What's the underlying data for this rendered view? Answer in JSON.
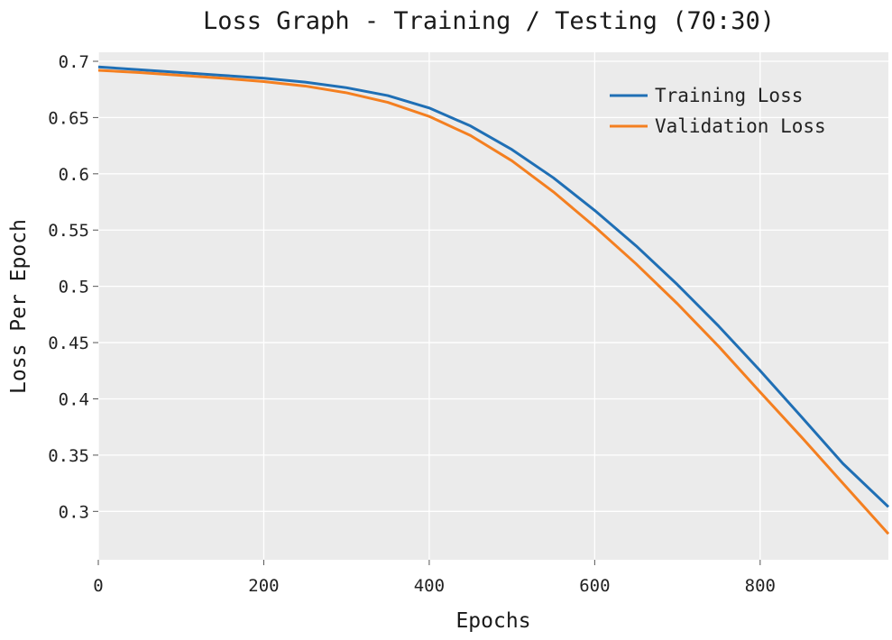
{
  "chart_data": {
    "type": "line",
    "title": "Loss Graph - Training / Testing (70:30)",
    "xlabel": "Epochs",
    "ylabel": "Loss Per Epoch",
    "xlim": [
      0,
      955
    ],
    "ylim": [
      0.257,
      0.708
    ],
    "xticks": [
      0,
      200,
      400,
      600,
      800
    ],
    "yticks": [
      0.3,
      0.35,
      0.4,
      0.45,
      0.5,
      0.55,
      0.6,
      0.65,
      0.7
    ],
    "ytick_labels": [
      "0.3",
      "0.35",
      "0.4",
      "0.45",
      "0.5",
      "0.55",
      "0.6",
      "0.65",
      "0.7"
    ],
    "grid": true,
    "legend_position": "top-right",
    "background_color": "#ebebeb",
    "grid_color": "#ffffff",
    "series": [
      {
        "name": "Training Loss",
        "color": "#1f6fb5",
        "x": [
          0,
          50,
          100,
          150,
          200,
          250,
          300,
          350,
          400,
          450,
          500,
          550,
          600,
          650,
          700,
          750,
          800,
          850,
          900,
          955
        ],
        "y": [
          0.695,
          0.6925,
          0.69,
          0.6875,
          0.685,
          0.6815,
          0.6765,
          0.6695,
          0.6585,
          0.6425,
          0.6215,
          0.5965,
          0.5675,
          0.536,
          0.5015,
          0.4645,
          0.425,
          0.384,
          0.3425,
          0.304
        ]
      },
      {
        "name": "Validation Loss",
        "color": "#f47f20",
        "x": [
          0,
          50,
          100,
          150,
          200,
          250,
          300,
          350,
          400,
          450,
          500,
          550,
          600,
          650,
          700,
          750,
          800,
          850,
          900,
          955
        ],
        "y": [
          0.692,
          0.69,
          0.6875,
          0.685,
          0.682,
          0.678,
          0.672,
          0.6635,
          0.651,
          0.634,
          0.6115,
          0.584,
          0.553,
          0.52,
          0.4845,
          0.4465,
          0.406,
          0.366,
          0.325,
          0.28
        ]
      }
    ]
  }
}
